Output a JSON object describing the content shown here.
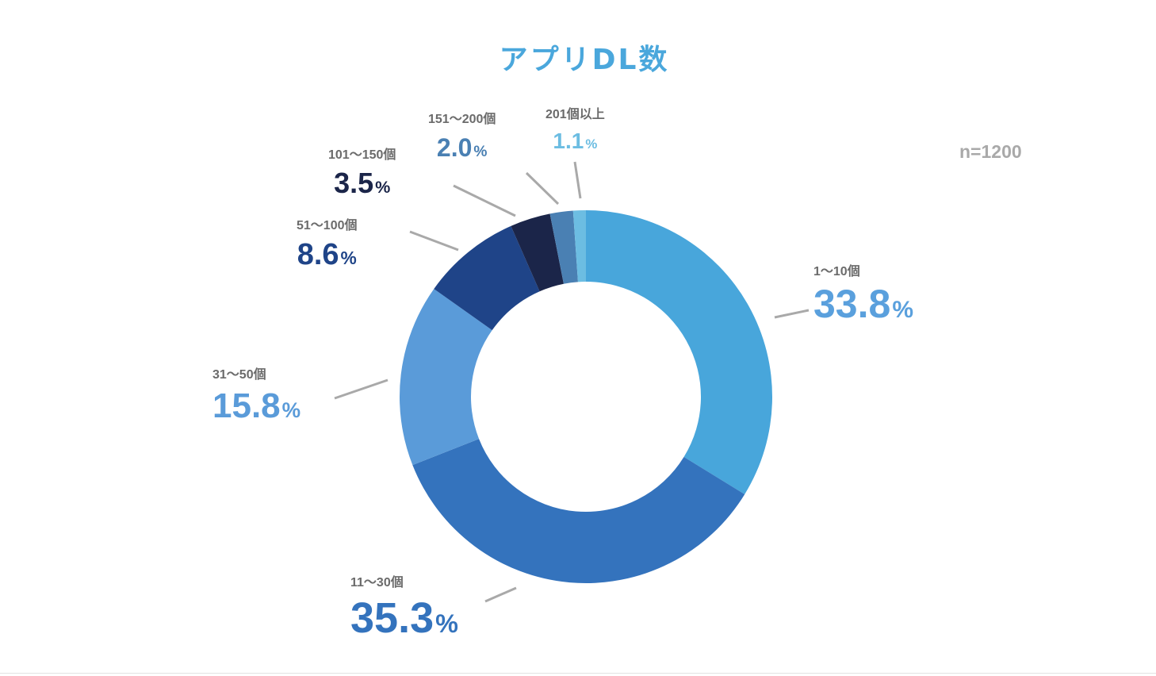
{
  "title": "アプリDL数",
  "sample_size": "n=1200",
  "chart_data": {
    "type": "pie",
    "subtype": "donut",
    "title": "アプリDL数",
    "annotation": "n=1200",
    "categories": [
      "1〜10個",
      "11〜30個",
      "31〜50個",
      "51〜100個",
      "101〜150個",
      "151〜200個",
      "201個以上"
    ],
    "values": [
      33.8,
      35.3,
      15.8,
      8.6,
      3.5,
      2.0,
      1.1
    ],
    "unit": "%",
    "colors": [
      "#48a6db",
      "#3473bd",
      "#5a9bd9",
      "#1f4488",
      "#1b2549",
      "#4a80b3",
      "#6cbde2"
    ],
    "value_label_colors": [
      "#5aa0dd",
      "#3473bd",
      "#5a9bd9",
      "#1f4488",
      "#1b2549",
      "#4a80b3",
      "#6cbde2"
    ],
    "start_angle_deg": 0,
    "direction": "clockwise",
    "legend": "none (direct labels with leader lines)"
  },
  "labels": [
    {
      "category": "1〜10個",
      "value": "33.8",
      "pct": "%"
    },
    {
      "category": "11〜30個",
      "value": "35.3",
      "pct": "%"
    },
    {
      "category": "31〜50個",
      "value": "15.8",
      "pct": "%"
    },
    {
      "category": "51〜100個",
      "value": "8.6",
      "pct": "%"
    },
    {
      "category": "101〜150個",
      "value": "3.5",
      "pct": "%"
    },
    {
      "category": "151〜200個",
      "value": "2.0",
      "pct": "%"
    },
    {
      "category": "201個以上",
      "value": "1.1",
      "pct": "%"
    }
  ]
}
